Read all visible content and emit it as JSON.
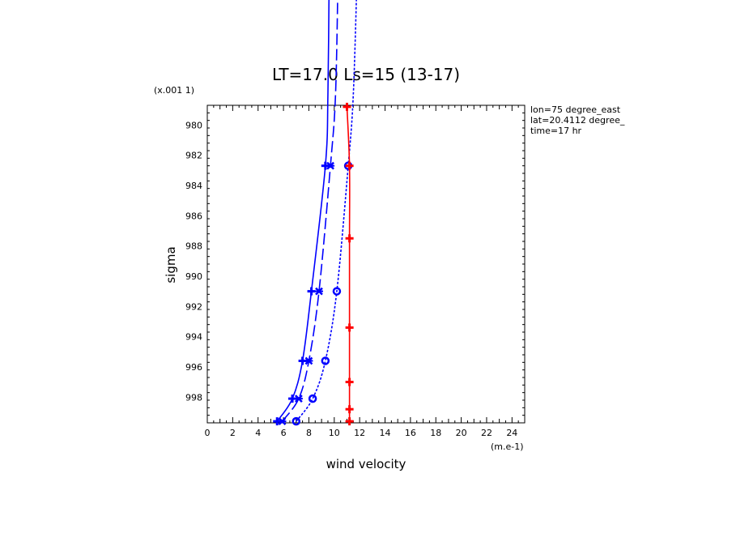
{
  "chart_data": {
    "type": "line",
    "title": "LT=17.0  Ls=15 (13-17)",
    "xlabel": "wind velocity",
    "ylabel": "sigma",
    "x_units": "(m.e-1)",
    "y_units": "(x.001 1)",
    "xlim": [
      0,
      25
    ],
    "ylim": [
      999.7,
      978.7
    ],
    "x_ticks": [
      "0",
      "2",
      "4",
      "6",
      "8",
      "10",
      "12",
      "14",
      "16",
      "18",
      "20",
      "22",
      "24"
    ],
    "y_ticks": [
      "980",
      "982",
      "984",
      "986",
      "988",
      "990",
      "992",
      "994",
      "996",
      "998"
    ],
    "info_lines": [
      "lon=75 degree_east",
      "lat=20.4112 degree_",
      "time=17 hr"
    ],
    "grid": false,
    "series": [
      {
        "style": "solid",
        "color": "#0000ff",
        "marker": "plus",
        "points": [
          [
            5.5,
            999.6
          ],
          [
            6.7,
            998.1
          ],
          [
            7.5,
            995.6
          ],
          [
            8.2,
            991.0
          ],
          [
            9.3,
            982.7
          ],
          [
            9.5,
            978.0
          ],
          [
            9.6,
            970.0
          ]
        ]
      },
      {
        "style": "longdash",
        "color": "#0000ff",
        "marker": "x",
        "points": [
          [
            5.9,
            999.6
          ],
          [
            7.2,
            998.1
          ],
          [
            8.0,
            995.6
          ],
          [
            8.8,
            991.0
          ],
          [
            9.7,
            982.7
          ],
          [
            10.1,
            978.0
          ],
          [
            10.3,
            970.0
          ]
        ]
      },
      {
        "style": "dotted",
        "color": "#0000ff",
        "marker": "circle",
        "points": [
          [
            7.0,
            999.6
          ],
          [
            8.3,
            998.1
          ],
          [
            9.3,
            995.6
          ],
          [
            10.2,
            991.0
          ],
          [
            11.1,
            982.7
          ],
          [
            11.5,
            978.0
          ],
          [
            11.8,
            970.0
          ]
        ]
      },
      {
        "style": "solid",
        "color": "#ff0000",
        "marker": "plus",
        "points": [
          [
            11.2,
            999.6
          ],
          [
            11.2,
            998.8
          ],
          [
            11.2,
            997.0
          ],
          [
            11.2,
            993.4
          ],
          [
            11.2,
            987.5
          ],
          [
            11.2,
            982.7
          ],
          [
            11.0,
            978.8
          ]
        ]
      }
    ]
  }
}
